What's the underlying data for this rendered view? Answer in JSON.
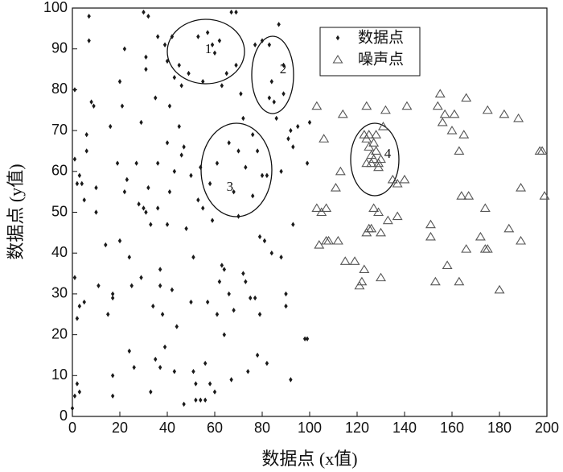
{
  "chart_data": {
    "type": "scatter",
    "xlabel": "数据点 (x值)",
    "ylabel": "数据点 (y值)",
    "xlim": [
      0,
      200
    ],
    "ylim": [
      0,
      100
    ],
    "xticks": [
      0,
      20,
      40,
      60,
      80,
      100,
      120,
      140,
      160,
      180,
      200
    ],
    "yticks": [
      0,
      10,
      20,
      30,
      40,
      50,
      60,
      70,
      80,
      90,
      100
    ],
    "legend": "upper-center",
    "series": [
      {
        "name": "数据点",
        "color": "#1a1a1a",
        "marker": "diamond",
        "x": [
          0,
          1,
          2,
          3,
          1,
          2,
          3,
          5,
          1,
          1,
          2,
          3,
          4,
          5,
          6,
          6,
          7,
          7,
          8,
          9,
          10,
          10,
          11,
          14,
          15,
          16,
          17,
          17,
          17,
          17,
          19,
          20,
          20,
          21,
          22,
          22,
          23,
          24,
          24,
          25,
          26,
          27,
          28,
          29,
          29,
          30,
          30,
          31,
          31,
          31,
          32,
          32,
          33,
          33,
          34,
          35,
          35,
          36,
          36,
          36,
          37,
          37,
          37,
          38,
          39,
          39,
          40,
          40,
          40,
          41,
          41,
          42,
          42,
          43,
          43,
          43,
          44,
          45,
          45,
          46,
          46,
          47,
          47,
          48,
          49,
          50,
          50,
          51,
          51,
          52,
          52,
          53,
          53,
          54,
          54,
          55,
          55,
          56,
          56,
          57,
          57,
          58,
          58,
          59,
          59,
          60,
          60,
          61,
          61,
          62,
          62,
          63,
          63,
          64,
          64,
          65,
          66,
          66,
          67,
          67,
          68,
          68,
          69,
          69,
          70,
          70,
          71,
          72,
          72,
          73,
          73,
          74,
          75,
          76,
          76,
          77,
          77,
          78,
          78,
          79,
          79,
          80,
          80,
          81,
          82,
          82,
          83,
          83,
          84,
          84,
          85,
          86,
          87,
          88,
          88,
          89,
          89,
          90,
          90,
          91,
          92,
          92,
          93,
          93,
          95,
          98,
          99,
          99,
          100
        ],
        "y": [
          2,
          5,
          8,
          6,
          34,
          24,
          27,
          28,
          63,
          80,
          57,
          59,
          57,
          53,
          69,
          65,
          98,
          92,
          77,
          76,
          56,
          50,
          32,
          42,
          25,
          71,
          30,
          10,
          5,
          29,
          62,
          82,
          43,
          76,
          55,
          90,
          58,
          39,
          16,
          32,
          12,
          62,
          52,
          34,
          72,
          99,
          51,
          88,
          85,
          50,
          98,
          56,
          47,
          6,
          27,
          78,
          14,
          93,
          62,
          51,
          36,
          32,
          12,
          25,
          91,
          17,
          87,
          67,
          47,
          76,
          55,
          93,
          31,
          83,
          60,
          11,
          22,
          86,
          71,
          81,
          64,
          66,
          3,
          46,
          84,
          59,
          28,
          39,
          11,
          4,
          8,
          93,
          53,
          61,
          4,
          82,
          51,
          4,
          13,
          94,
          28,
          8,
          57,
          91,
          48,
          6,
          89,
          62,
          25,
          92,
          33,
          37,
          81,
          36,
          20,
          84,
          67,
          30,
          99,
          9,
          55,
          26,
          99,
          86,
          65,
          49,
          79,
          73,
          35,
          61,
          33,
          11,
          29,
          69,
          54,
          91,
          29,
          65,
          15,
          44,
          25,
          92,
          59,
          43,
          59,
          13,
          91,
          78,
          82,
          40,
          77,
          73,
          96,
          60,
          39,
          79,
          86,
          27,
          30,
          68,
          9,
          70,
          66,
          47,
          71,
          19,
          19,
          62,
          72
        ]
      },
      {
        "name": "噪声点",
        "color": "#555555",
        "marker": "triangle",
        "x": [
          103,
          103,
          104,
          105,
          106,
          107,
          107,
          108,
          111,
          112,
          113,
          114,
          115,
          119,
          121,
          122,
          123,
          124,
          124,
          125,
          126,
          127,
          129,
          130,
          130,
          131,
          132,
          133,
          135,
          137,
          137,
          140,
          141,
          151,
          151,
          153,
          154,
          155,
          156,
          157,
          158,
          160,
          161,
          163,
          163,
          164,
          165,
          166,
          166,
          167,
          172,
          174,
          174,
          175,
          175,
          180,
          182,
          184,
          188,
          189,
          189,
          197,
          198,
          199,
          123,
          124,
          125,
          126,
          126,
          127,
          127,
          128,
          129,
          129,
          130,
          125,
          124,
          128
        ],
        "y": [
          76,
          51,
          42,
          50,
          68,
          43,
          51,
          43,
          56,
          43,
          60,
          74,
          38,
          38,
          32,
          33,
          36,
          76,
          45,
          46,
          46,
          51,
          50,
          34,
          45,
          71,
          75,
          48,
          58,
          57,
          49,
          58,
          76,
          47,
          44,
          33,
          76,
          79,
          72,
          74,
          37,
          70,
          74,
          65,
          33,
          54,
          69,
          78,
          41,
          54,
          44,
          51,
          41,
          41,
          75,
          31,
          74,
          46,
          73,
          56,
          43,
          65,
          65,
          54,
          69,
          68,
          66,
          64,
          62,
          67,
          63,
          65,
          62,
          61,
          63,
          69,
          62,
          69
        ]
      }
    ],
    "annotations": [
      {
        "text": "1",
        "x": 57.3,
        "y": 89.7
      },
      {
        "text": "2",
        "x": 88.8,
        "y": 84.8
      },
      {
        "text": "3",
        "x": 66.4,
        "y": 56
      },
      {
        "text": "4",
        "x": 132.9,
        "y": 64.1
      }
    ]
  }
}
